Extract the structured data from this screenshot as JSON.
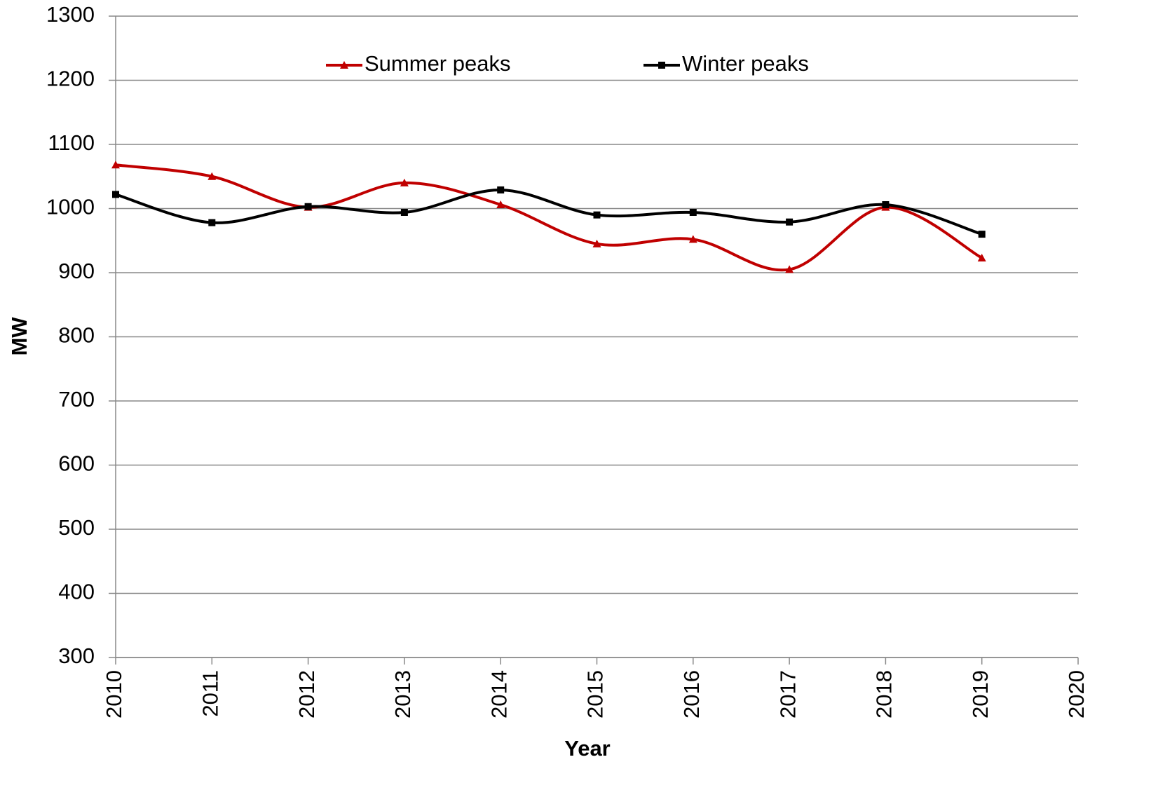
{
  "chart_data": {
    "type": "line",
    "x": [
      2010,
      2011,
      2012,
      2013,
      2014,
      2015,
      2016,
      2017,
      2018,
      2019
    ],
    "series": [
      {
        "name": "Summer peaks",
        "color": "#c00000",
        "marker": "triangle",
        "values": [
          1068,
          1050,
          1002,
          1040,
          1006,
          945,
          952,
          905,
          1002,
          923
        ]
      },
      {
        "name": "Winter peaks",
        "color": "#000000",
        "marker": "square",
        "values": [
          1022,
          978,
          1003,
          994,
          1029,
          990,
          994,
          979,
          1006,
          960
        ]
      }
    ],
    "xlim": [
      2010,
      2020
    ],
    "xticks": [
      2010,
      2011,
      2012,
      2013,
      2014,
      2015,
      2016,
      2017,
      2018,
      2019,
      2020
    ],
    "ylim": [
      300,
      1300
    ],
    "yticks": [
      300,
      400,
      500,
      600,
      700,
      800,
      900,
      1000,
      1100,
      1200,
      1300
    ],
    "xlabel": "Year",
    "ylabel": "MW",
    "grid": true,
    "smooth": true,
    "legend": "top"
  }
}
